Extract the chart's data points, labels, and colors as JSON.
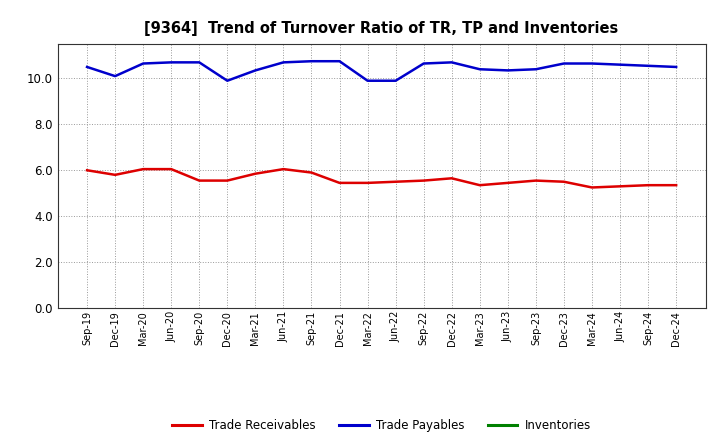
{
  "title": "[9364]  Trend of Turnover Ratio of TR, TP and Inventories",
  "x_labels": [
    "Sep-19",
    "Dec-19",
    "Mar-20",
    "Jun-20",
    "Sep-20",
    "Dec-20",
    "Mar-21",
    "Jun-21",
    "Sep-21",
    "Dec-21",
    "Mar-22",
    "Jun-22",
    "Sep-22",
    "Dec-22",
    "Mar-23",
    "Jun-23",
    "Sep-23",
    "Dec-23",
    "Mar-24",
    "Jun-24",
    "Sep-24",
    "Dec-24"
  ],
  "trade_receivables": [
    6.0,
    5.8,
    6.05,
    6.05,
    5.55,
    5.55,
    5.85,
    6.05,
    5.9,
    5.45,
    5.45,
    5.5,
    5.55,
    5.65,
    5.35,
    5.45,
    5.55,
    5.5,
    5.25,
    5.3,
    5.35,
    5.35
  ],
  "trade_payables": [
    10.5,
    10.1,
    10.65,
    10.7,
    10.7,
    9.9,
    10.35,
    10.7,
    10.75,
    10.75,
    9.9,
    9.9,
    10.65,
    10.7,
    10.4,
    10.35,
    10.4,
    10.65,
    10.65,
    10.6,
    10.55,
    10.5
  ],
  "inventories": [
    null,
    null,
    null,
    null,
    null,
    null,
    null,
    null,
    null,
    null,
    null,
    null,
    null,
    null,
    null,
    null,
    null,
    null,
    null,
    null,
    null,
    null
  ],
  "tr_color": "#dd0000",
  "tp_color": "#0000cc",
  "inv_color": "#008000",
  "ylim": [
    0.0,
    11.5
  ],
  "yticks": [
    0.0,
    2.0,
    4.0,
    6.0,
    8.0,
    10.0
  ],
  "background_color": "#ffffff",
  "legend_labels": [
    "Trade Receivables",
    "Trade Payables",
    "Inventories"
  ]
}
